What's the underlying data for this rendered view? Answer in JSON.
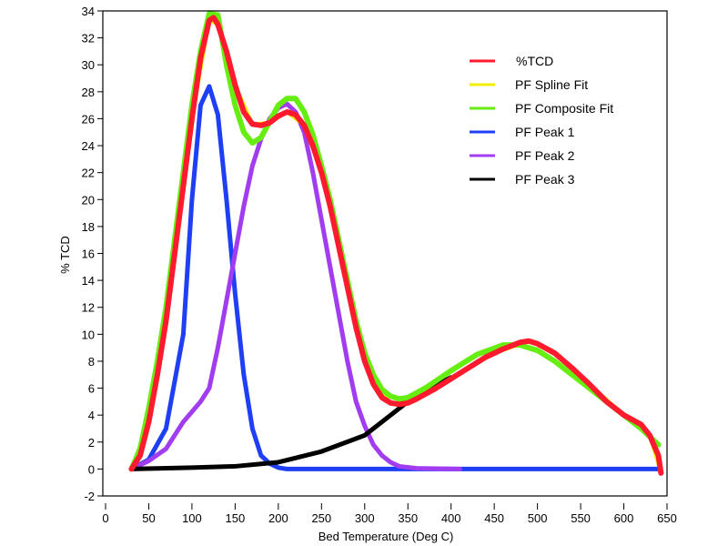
{
  "chart_data": {
    "type": "line",
    "title": "",
    "xlabel": "Bed Temperature (Deg C)",
    "ylabel": "% TCD",
    "xlim": [
      0,
      650
    ],
    "ylim": [
      -2,
      34
    ],
    "xticks": [
      0,
      50,
      100,
      150,
      200,
      250,
      300,
      350,
      400,
      450,
      500,
      550,
      600,
      650
    ],
    "yticks": [
      -2,
      0,
      2,
      4,
      6,
      8,
      10,
      12,
      14,
      16,
      18,
      20,
      22,
      24,
      26,
      28,
      30,
      32,
      34
    ],
    "grid": false,
    "legend_position": "top-right",
    "series": [
      {
        "name": "%TCD",
        "color": "#ff1a2e",
        "points": [
          [
            30,
            0
          ],
          [
            40,
            1
          ],
          [
            50,
            3.5
          ],
          [
            60,
            7
          ],
          [
            70,
            11
          ],
          [
            80,
            16
          ],
          [
            90,
            21
          ],
          [
            100,
            26
          ],
          [
            110,
            30.5
          ],
          [
            120,
            33.3
          ],
          [
            125,
            33.5
          ],
          [
            130,
            33
          ],
          [
            140,
            31
          ],
          [
            150,
            28.5
          ],
          [
            160,
            26.5
          ],
          [
            170,
            25.6
          ],
          [
            180,
            25.5
          ],
          [
            190,
            25.7
          ],
          [
            200,
            26.2
          ],
          [
            210,
            26.5
          ],
          [
            220,
            26.3
          ],
          [
            230,
            25.5
          ],
          [
            240,
            24
          ],
          [
            250,
            22
          ],
          [
            260,
            19.5
          ],
          [
            270,
            16.5
          ],
          [
            280,
            13.5
          ],
          [
            290,
            10.5
          ],
          [
            300,
            8
          ],
          [
            310,
            6.3
          ],
          [
            320,
            5.3
          ],
          [
            330,
            4.9
          ],
          [
            340,
            4.8
          ],
          [
            350,
            4.9
          ],
          [
            360,
            5.2
          ],
          [
            380,
            5.9
          ],
          [
            400,
            6.7
          ],
          [
            420,
            7.5
          ],
          [
            440,
            8.3
          ],
          [
            460,
            8.9
          ],
          [
            480,
            9.4
          ],
          [
            490,
            9.5
          ],
          [
            500,
            9.3
          ],
          [
            520,
            8.6
          ],
          [
            540,
            7.5
          ],
          [
            560,
            6.3
          ],
          [
            580,
            5
          ],
          [
            600,
            4
          ],
          [
            620,
            3.3
          ],
          [
            630,
            2.5
          ],
          [
            640,
            1
          ],
          [
            643,
            -0.3
          ]
        ]
      },
      {
        "name": "PF Spline Fit",
        "color": "#f0f000",
        "points": [
          [
            30,
            0
          ],
          [
            50,
            3.5
          ],
          [
            80,
            16
          ],
          [
            100,
            26
          ],
          [
            120,
            33.3
          ],
          [
            130,
            33
          ],
          [
            150,
            28.5
          ],
          [
            170,
            25.6
          ],
          [
            190,
            25.7
          ],
          [
            210,
            26.5
          ],
          [
            230,
            25.5
          ],
          [
            250,
            22
          ],
          [
            270,
            16.5
          ],
          [
            290,
            10.5
          ],
          [
            310,
            6.3
          ],
          [
            330,
            4.9
          ],
          [
            350,
            4.9
          ],
          [
            400,
            6.7
          ],
          [
            450,
            8.6
          ],
          [
            490,
            9.5
          ],
          [
            520,
            8.6
          ],
          [
            560,
            6.3
          ],
          [
            600,
            4
          ],
          [
            630,
            2.5
          ],
          [
            643,
            -0.3
          ]
        ]
      },
      {
        "name": "PF Composite Fit",
        "color": "#66ee11",
        "points": [
          [
            30,
            0
          ],
          [
            40,
            1.5
          ],
          [
            50,
            4.5
          ],
          [
            60,
            8
          ],
          [
            70,
            12
          ],
          [
            80,
            17
          ],
          [
            90,
            22
          ],
          [
            100,
            27
          ],
          [
            110,
            31
          ],
          [
            120,
            33.8
          ],
          [
            130,
            33.7
          ],
          [
            140,
            30
          ],
          [
            150,
            27
          ],
          [
            160,
            25
          ],
          [
            170,
            24.2
          ],
          [
            180,
            24.6
          ],
          [
            190,
            25.8
          ],
          [
            200,
            27
          ],
          [
            210,
            27.5
          ],
          [
            220,
            27.5
          ],
          [
            230,
            26.5
          ],
          [
            240,
            24.8
          ],
          [
            250,
            22.5
          ],
          [
            260,
            20
          ],
          [
            270,
            17
          ],
          [
            280,
            14
          ],
          [
            290,
            11
          ],
          [
            300,
            8.6
          ],
          [
            310,
            7
          ],
          [
            320,
            5.9
          ],
          [
            330,
            5.4
          ],
          [
            340,
            5.2
          ],
          [
            350,
            5.3
          ],
          [
            370,
            6
          ],
          [
            400,
            7.3
          ],
          [
            430,
            8.5
          ],
          [
            460,
            9.2
          ],
          [
            480,
            9.2
          ],
          [
            500,
            8.8
          ],
          [
            520,
            8
          ],
          [
            540,
            7
          ],
          [
            560,
            6
          ],
          [
            580,
            5
          ],
          [
            600,
            4
          ],
          [
            620,
            3
          ],
          [
            640,
            1.8
          ]
        ]
      },
      {
        "name": "PF Peak 1",
        "color": "#1f3ff5",
        "points": [
          [
            30,
            0
          ],
          [
            50,
            0.7
          ],
          [
            70,
            3
          ],
          [
            90,
            10
          ],
          [
            100,
            20
          ],
          [
            110,
            27
          ],
          [
            120,
            28.4
          ],
          [
            130,
            26.3
          ],
          [
            140,
            20
          ],
          [
            150,
            13
          ],
          [
            160,
            7
          ],
          [
            170,
            3
          ],
          [
            180,
            1
          ],
          [
            190,
            0.4
          ],
          [
            200,
            0.1
          ],
          [
            210,
            0
          ],
          [
            640,
            0
          ]
        ]
      },
      {
        "name": "PF Peak 2",
        "color": "#a23cf0",
        "points": [
          [
            30,
            0
          ],
          [
            50,
            0.6
          ],
          [
            70,
            1.5
          ],
          [
            90,
            3.5
          ],
          [
            110,
            5
          ],
          [
            120,
            6
          ],
          [
            130,
            9
          ],
          [
            140,
            12.5
          ],
          [
            150,
            16
          ],
          [
            160,
            19.5
          ],
          [
            170,
            22.5
          ],
          [
            180,
            24.5
          ],
          [
            190,
            26
          ],
          [
            200,
            26.8
          ],
          [
            210,
            27.1
          ],
          [
            220,
            26.5
          ],
          [
            230,
            25
          ],
          [
            240,
            22
          ],
          [
            250,
            18.5
          ],
          [
            260,
            15
          ],
          [
            270,
            11.5
          ],
          [
            280,
            8
          ],
          [
            290,
            5
          ],
          [
            300,
            3.2
          ],
          [
            310,
            1.8
          ],
          [
            320,
            1
          ],
          [
            330,
            0.5
          ],
          [
            340,
            0.2
          ],
          [
            360,
            0.05
          ],
          [
            410,
            0
          ]
        ]
      },
      {
        "name": "PF Peak 3",
        "color": "#000000",
        "points": [
          [
            30,
            0
          ],
          [
            100,
            0.1
          ],
          [
            150,
            0.2
          ],
          [
            200,
            0.5
          ],
          [
            250,
            1.3
          ],
          [
            300,
            2.5
          ],
          [
            330,
            4
          ],
          [
            350,
            5
          ],
          [
            370,
            5.8
          ],
          [
            400,
            6.8
          ]
        ]
      }
    ]
  }
}
